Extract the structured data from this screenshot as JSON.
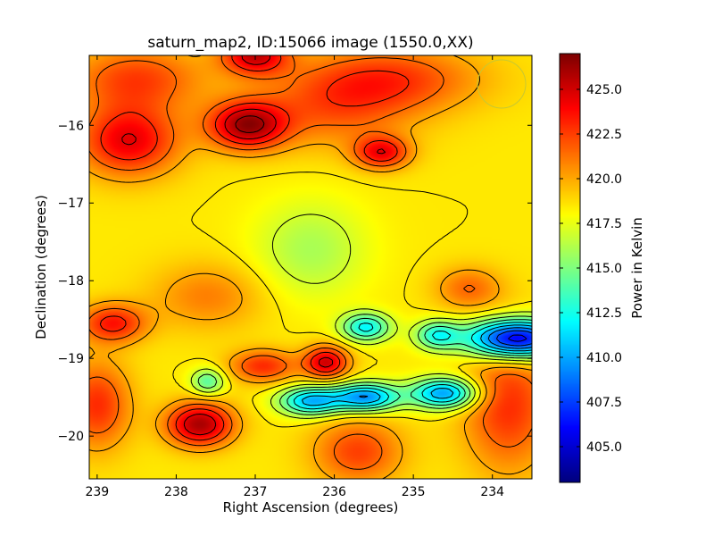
{
  "chart_data": {
    "type": "heatmap",
    "title": "saturn_map2, ID:15066 image (1550.0,XX)",
    "xlabel": "Right Ascension (degrees)",
    "ylabel": "Declination (degrees)",
    "xlim": [
      239.1,
      233.5
    ],
    "ylim": [
      -20.55,
      -15.1
    ],
    "x_ticks": [
      239,
      238,
      237,
      236,
      235,
      234
    ],
    "y_ticks": [
      -16,
      -17,
      -18,
      -19,
      -20
    ],
    "colorbar": {
      "label": "Power in Kelvin",
      "vmin": 403.0,
      "vmax": 427.0,
      "ticks": [
        "405.0",
        "407.5",
        "410.0",
        "412.5",
        "415.0",
        "417.5",
        "420.0",
        "422.5",
        "425.0"
      ]
    },
    "contours": true,
    "baseline": 418.5,
    "features": [
      {
        "ra": 233.7,
        "dec": -18.75,
        "value": 404.5,
        "sx": 0.45,
        "sy": 0.18
      },
      {
        "ra": 234.6,
        "dec": -19.45,
        "value": 409.5,
        "sx": 0.3,
        "sy": 0.14
      },
      {
        "ra": 235.6,
        "dec": -19.5,
        "value": 409.5,
        "sx": 0.3,
        "sy": 0.13
      },
      {
        "ra": 236.3,
        "dec": -19.55,
        "value": 410.5,
        "sx": 0.28,
        "sy": 0.13
      },
      {
        "ra": 235.6,
        "dec": -18.6,
        "value": 412.0,
        "sx": 0.22,
        "sy": 0.13
      },
      {
        "ra": 234.7,
        "dec": -18.7,
        "value": 413.0,
        "sx": 0.2,
        "sy": 0.13
      },
      {
        "ra": 237.6,
        "dec": -19.3,
        "value": 414.0,
        "sx": 0.15,
        "sy": 0.12
      },
      {
        "ra": 236.3,
        "dec": -17.6,
        "value": 416.0,
        "sx": 0.5,
        "sy": 0.45
      },
      {
        "ra": 237.1,
        "dec": -16.0,
        "value": 426.0,
        "sx": 0.35,
        "sy": 0.22
      },
      {
        "ra": 238.6,
        "dec": -16.2,
        "value": 424.5,
        "sx": 0.45,
        "sy": 0.32
      },
      {
        "ra": 237.7,
        "dec": -19.85,
        "value": 426.0,
        "sx": 0.3,
        "sy": 0.2
      },
      {
        "ra": 236.1,
        "dec": -19.05,
        "value": 425.0,
        "sx": 0.2,
        "sy": 0.15
      },
      {
        "ra": 236.9,
        "dec": -19.1,
        "value": 423.0,
        "sx": 0.3,
        "sy": 0.15
      },
      {
        "ra": 238.8,
        "dec": -18.55,
        "value": 423.5,
        "sx": 0.3,
        "sy": 0.18
      },
      {
        "ra": 235.4,
        "dec": -16.35,
        "value": 424.0,
        "sx": 0.25,
        "sy": 0.15
      },
      {
        "ra": 237.0,
        "dec": -15.1,
        "value": 425.0,
        "sx": 0.3,
        "sy": 0.18
      },
      {
        "ra": 233.8,
        "dec": -19.6,
        "value": 423.0,
        "sx": 0.4,
        "sy": 0.6
      },
      {
        "ra": 234.3,
        "dec": -18.1,
        "value": 421.5,
        "sx": 0.3,
        "sy": 0.2
      },
      {
        "ra": 235.3,
        "dec": -15.4,
        "value": 422.5,
        "sx": 0.8,
        "sy": 0.3
      },
      {
        "ra": 238.5,
        "dec": -15.4,
        "value": 422.5,
        "sx": 0.6,
        "sy": 0.3
      },
      {
        "ra": 239.0,
        "dec": -19.6,
        "value": 423.0,
        "sx": 0.3,
        "sy": 0.4
      },
      {
        "ra": 235.7,
        "dec": -20.2,
        "value": 422.5,
        "sx": 0.4,
        "sy": 0.3
      },
      {
        "ra": 236.0,
        "dec": -15.8,
        "value": 421.5,
        "sx": 0.7,
        "sy": 0.35
      },
      {
        "ra": 237.6,
        "dec": -18.2,
        "value": 421.0,
        "sx": 0.5,
        "sy": 0.3
      }
    ]
  }
}
